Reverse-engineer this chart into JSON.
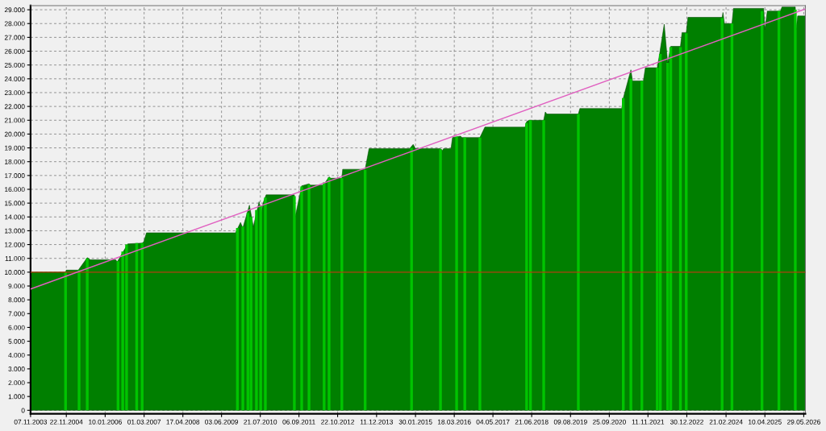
{
  "chart_data": {
    "type": "area",
    "xlim": [
      "2003-11-07",
      "2026-06-15"
    ],
    "ylim": [
      -250,
      29300
    ],
    "xticks": [
      {
        "value": "2003-11-07",
        "label": "07.11.2003"
      },
      {
        "value": "2004-11-22",
        "label": "22.11.2004"
      },
      {
        "value": "2006-01-10",
        "label": "10.01.2006"
      },
      {
        "value": "2007-03-01",
        "label": "01.03.2007"
      },
      {
        "value": "2008-04-17",
        "label": "17.04.2008"
      },
      {
        "value": "2009-06-03",
        "label": "03.06.2009"
      },
      {
        "value": "2010-07-21",
        "label": "21.07.2010"
      },
      {
        "value": "2011-09-06",
        "label": "06.09.2011"
      },
      {
        "value": "2012-10-22",
        "label": "22.10.2012"
      },
      {
        "value": "2013-12-11",
        "label": "11.12.2013"
      },
      {
        "value": "2015-01-30",
        "label": "30.01.2015"
      },
      {
        "value": "2016-03-18",
        "label": "18.03.2016"
      },
      {
        "value": "2017-05-04",
        "label": "04.05.2017"
      },
      {
        "value": "2018-06-21",
        "label": "21.06.2018"
      },
      {
        "value": "2019-08-09",
        "label": "09.08.2019"
      },
      {
        "value": "2020-09-25",
        "label": "25.09.2020"
      },
      {
        "value": "2021-11-11",
        "label": "11.11.2021"
      },
      {
        "value": "2022-12-30",
        "label": "30.12.2022"
      },
      {
        "value": "2024-02-21",
        "label": "21.02.2024"
      },
      {
        "value": "2025-04-10",
        "label": "10.04.2025"
      },
      {
        "value": "2026-05-29",
        "label": "29.05.2026"
      }
    ],
    "yticks": [
      0,
      {
        "value": 1000,
        "label": "1.000"
      },
      {
        "value": 2000,
        "label": "2.000"
      },
      {
        "value": 3000,
        "label": "3.000"
      },
      {
        "value": 4000,
        "label": "4.000"
      },
      {
        "value": 5000,
        "label": "5.000"
      },
      {
        "value": 6000,
        "label": "6.000"
      },
      {
        "value": 7000,
        "label": "7.000"
      },
      {
        "value": 8000,
        "label": "8.000"
      },
      {
        "value": 9000,
        "label": "9.000"
      },
      {
        "value": 10000,
        "label": "10.000"
      },
      {
        "value": 11000,
        "label": "11.000"
      },
      {
        "value": 12000,
        "label": "12.000"
      },
      {
        "value": 13000,
        "label": "13.000"
      },
      {
        "value": 14000,
        "label": "14.000"
      },
      {
        "value": 15000,
        "label": "15.000"
      },
      {
        "value": 16000,
        "label": "16.000"
      },
      {
        "value": 17000,
        "label": "17.000"
      },
      {
        "value": 18000,
        "label": "18.000"
      },
      {
        "value": 19000,
        "label": "19.000"
      },
      {
        "value": 20000,
        "label": "20.000"
      },
      {
        "value": 21000,
        "label": "21.000"
      },
      {
        "value": 22000,
        "label": "22.000"
      },
      {
        "value": 23000,
        "label": "23.000"
      },
      {
        "value": 24000,
        "label": "24.000"
      },
      {
        "value": 25000,
        "label": "25.000"
      },
      {
        "value": 26000,
        "label": "26.000"
      },
      {
        "value": 27000,
        "label": "27.000"
      },
      {
        "value": 28000,
        "label": "28.000"
      },
      {
        "value": 29000,
        "label": "29.000"
      }
    ],
    "grid": true,
    "ref_lines": [
      {
        "axis": "y",
        "value": 10000,
        "color": "#b04010"
      }
    ],
    "series": [
      {
        "color": "#007f00",
        "x": [
          "2003-11-07",
          "2004-11-14",
          "2004-11-22",
          "2005-03-30",
          "2005-07-03",
          "2005-08-05",
          "2006-05-02",
          "2006-05-19",
          "2006-09-08",
          "2007-02-08",
          "2007-02-25",
          "2007-03-26",
          "2009-10-30",
          "2009-12-22",
          "2010-01-16",
          "2010-03-27",
          "2010-05-08",
          "2010-07-08",
          "2010-08-02",
          "2010-08-19",
          "2010-09-21",
          "2011-07-19",
          "2011-07-28",
          "2011-10-05",
          "2011-12-22",
          "2012-01-08",
          "2012-05-23",
          "2012-07-23",
          "2012-08-09",
          "2012-12-06",
          "2012-12-15",
          "2013-08-11",
          "2013-09-22",
          "2014-11-29",
          "2015-01-05",
          "2015-01-30",
          "2015-10-23",
          "2015-11-12",
          "2015-11-25",
          "2016-02-12",
          "2016-02-28",
          "2016-05-23",
          "2016-06-09",
          "2016-12-16",
          "2017-02-07",
          "2018-04-12",
          "2018-04-28",
          "2018-05-23",
          "2018-10-27",
          "2018-11-13",
          "2018-11-29",
          "2019-10-31",
          "2019-11-16",
          "2021-02-04",
          "2021-02-21",
          "2021-05-13",
          "2021-05-30",
          "2021-09-23",
          "2021-10-14",
          "2022-02-18",
          "2022-03-15",
          "2022-05-03",
          "2022-06-09",
          "2022-07-12",
          "2022-10-23",
          "2022-11-09",
          "2022-12-24",
          "2023-01-11",
          "2024-01-10",
          "2024-01-19",
          "2024-02-04",
          "2024-04-24",
          "2024-05-10",
          "2025-03-28",
          "2025-04-10",
          "2025-05-05",
          "2025-09-23",
          "2025-10-09",
          "2026-02-28",
          "2026-03-08",
          "2026-03-25",
          "2026-06-15"
        ],
        "values": [
          10000,
          10000,
          10150,
          10150,
          11050,
          10900,
          10900,
          10750,
          12050,
          12100,
          12200,
          12850,
          12850,
          13600,
          13200,
          14850,
          13300,
          15100,
          14300,
          15000,
          15600,
          15600,
          14000,
          16250,
          16400,
          16300,
          16300,
          16900,
          16800,
          16800,
          17450,
          17450,
          18950,
          18950,
          19250,
          18950,
          18950,
          18800,
          18950,
          18950,
          19750,
          19850,
          19750,
          19750,
          20500,
          20500,
          20900,
          21000,
          21000,
          21600,
          21450,
          21450,
          21850,
          21850,
          22600,
          24650,
          23850,
          23850,
          24800,
          24800,
          25800,
          27950,
          25150,
          26350,
          26350,
          27350,
          27350,
          28450,
          28450,
          28800,
          28000,
          28000,
          29100,
          29100,
          27550,
          28900,
          28900,
          29200,
          29200,
          27550,
          28550,
          28550
        ]
      },
      {
        "type": "bar",
        "color": "#00c400",
        "x": [
          "2004-11-14",
          "2005-04-07",
          "2005-07-03",
          "2006-05-27",
          "2006-07-16",
          "2006-08-26",
          "2006-12-12",
          "2007-02-08",
          "2009-11-19",
          "2010-01-16",
          "2010-03-11",
          "2010-04-13",
          "2010-06-10",
          "2010-07-25",
          "2010-09-13",
          "2011-07-19",
          "2011-10-05",
          "2011-12-22",
          "2012-05-31",
          "2012-07-23",
          "2012-12-06",
          "2013-08-11",
          "2014-12-19",
          "2015-10-23",
          "2016-04-12",
          "2016-07-08",
          "2016-12-16",
          "2018-04-28",
          "2018-06-08",
          "2018-10-27",
          "2019-10-31",
          "2021-02-21",
          "2021-05-13",
          "2021-09-07",
          "2022-02-18",
          "2022-03-23",
          "2022-06-09",
          "2022-07-12",
          "2022-10-23",
          "2022-12-24",
          "2024-01-10",
          "2024-04-24",
          "2025-03-10",
          "2025-09-06",
          "2026-02-28"
        ],
        "values": [
          10000,
          10150,
          11000,
          10800,
          11500,
          12000,
          12100,
          12100,
          13200,
          13300,
          14300,
          14000,
          14500,
          14800,
          15400,
          15500,
          16200,
          16350,
          16500,
          16850,
          16800,
          17400,
          19000,
          18900,
          19800,
          19750,
          19750,
          20800,
          21000,
          21000,
          21450,
          22600,
          24000,
          23850,
          24800,
          25800,
          25150,
          26300,
          26300,
          27300,
          28400,
          28000,
          28900,
          28900,
          29000
        ]
      },
      {
        "type": "line",
        "color": "#e060c0",
        "x": [
          "2003-11-07",
          "2026-06-15"
        ],
        "values": [
          8780,
          29050
        ]
      }
    ]
  }
}
